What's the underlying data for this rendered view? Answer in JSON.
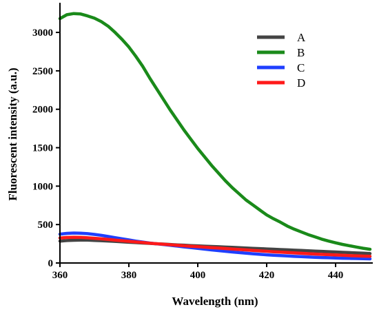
{
  "chart_data": {
    "type": "line",
    "title": "",
    "xlabel": "Wavelength (nm)",
    "ylabel": "Fluorescent intensity (a.u.)",
    "xlim": [
      360,
      450
    ],
    "ylim": [
      0,
      3350
    ],
    "xticks": [
      360,
      380,
      400,
      420,
      440
    ],
    "yticks": [
      0,
      500,
      1000,
      1500,
      2000,
      2500,
      3000
    ],
    "grid": false,
    "legend_position": "top-right",
    "x": [
      360,
      362,
      364,
      366,
      368,
      370,
      372,
      374,
      376,
      378,
      380,
      382,
      384,
      386,
      388,
      390,
      392,
      394,
      396,
      398,
      400,
      402,
      404,
      406,
      408,
      410,
      412,
      414,
      416,
      418,
      420,
      422,
      424,
      426,
      428,
      430,
      432,
      434,
      436,
      438,
      440,
      442,
      444,
      446,
      448,
      450
    ],
    "series": [
      {
        "name": "A",
        "color": "#444444",
        "values": [
          285,
          292,
          296,
          298,
          297,
          294,
          290,
          286,
          281,
          276,
          270,
          265,
          260,
          255,
          250,
          246,
          241,
          236,
          232,
          227,
          223,
          219,
          215,
          211,
          207,
          203,
          199,
          195,
          191,
          187,
          183,
          179,
          175,
          171,
          167,
          163,
          159,
          155,
          151,
          147,
          143,
          139,
          135,
          131,
          127,
          123
        ]
      },
      {
        "name": "B",
        "color": "#1a8a1a",
        "values": [
          3180,
          3230,
          3245,
          3240,
          3215,
          3185,
          3140,
          3080,
          3000,
          2910,
          2810,
          2690,
          2560,
          2410,
          2270,
          2130,
          1990,
          1860,
          1730,
          1610,
          1490,
          1380,
          1270,
          1170,
          1070,
          980,
          900,
          820,
          755,
          690,
          625,
          575,
          530,
          480,
          440,
          405,
          370,
          340,
          310,
          285,
          262,
          242,
          225,
          208,
          192,
          178
        ]
      },
      {
        "name": "C",
        "color": "#1f3fff",
        "values": [
          375,
          385,
          390,
          388,
          382,
          372,
          360,
          345,
          330,
          315,
          300,
          285,
          272,
          260,
          250,
          240,
          230,
          220,
          210,
          200,
          190,
          180,
          170,
          161,
          152,
          143,
          135,
          127,
          120,
          113,
          107,
          101,
          96,
          91,
          86,
          82,
          78,
          74,
          71,
          68,
          65,
          62,
          60,
          58,
          56,
          54
        ]
      },
      {
        "name": "D",
        "color": "#ff1a1a",
        "values": [
          325,
          332,
          335,
          333,
          328,
          322,
          314,
          306,
          298,
          290,
          282,
          274,
          266,
          258,
          251,
          244,
          237,
          230,
          224,
          218,
          212,
          206,
          200,
          194,
          188,
          182,
          176,
          170,
          164,
          158,
          152,
          146,
          141,
          136,
          131,
          126,
          121,
          116,
          112,
          108,
          104,
          100,
          96,
          93,
          90,
          87
        ]
      }
    ]
  }
}
